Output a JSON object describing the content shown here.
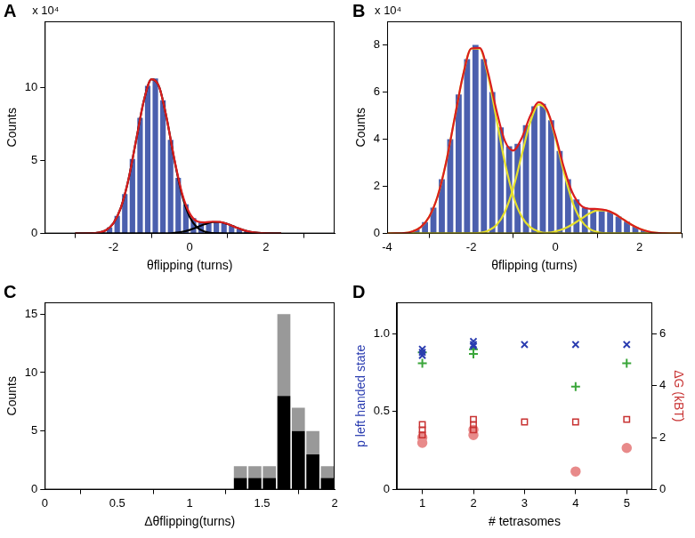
{
  "chart_data": [
    {
      "panel": "A",
      "type": "histogram",
      "xlabel": "θflipping (turns)",
      "ylabel": "Counts",
      "y_multiplier": "x 10⁴",
      "bins": [
        -3,
        -2.8,
        -2.6,
        -2.4,
        -2.2,
        -2,
        -1.8,
        -1.6,
        -1.4,
        -1.2,
        -1,
        -0.8,
        -0.6,
        -0.4,
        -0.2,
        0,
        0.2,
        0.4,
        0.6,
        0.8,
        1,
        1.2,
        1.4,
        1.6,
        1.8,
        2,
        2.2,
        2.4
      ],
      "counts": [
        0,
        0.01,
        0.03,
        0.13,
        0.42,
        1.2,
        2.7,
        5.1,
        7.9,
        10.1,
        10.6,
        9.1,
        6.4,
        3.8,
        2,
        1.05,
        0.78,
        0.8,
        0.82,
        0.72,
        0.55,
        0.33,
        0.17,
        0.07,
        0.02,
        0.01,
        0
      ],
      "color": "#4b5fae",
      "x": [
        -3,
        -2.8,
        -2.6,
        -2.4,
        -2.2,
        -2,
        -1.8,
        -1.6,
        -1.4,
        -1.2,
        -1,
        -0.8,
        -0.6,
        -0.4,
        -0.2,
        0,
        0.2,
        0.4,
        0.6,
        0.8,
        1,
        1.2,
        1.4,
        1.6,
        1.8,
        2,
        2.2,
        2.4
      ],
      "series": [
        {
          "type": "line",
          "color": "#000000",
          "values": [
            0,
            0,
            0.01,
            0.06,
            0.22,
            0.7,
            1.79,
            3.74,
            6.43,
            9.09,
            10.54,
            10.03,
            7.84,
            5.02,
            2.64,
            1.14,
            0.4,
            0.12,
            0.03,
            0.01,
            0,
            0,
            0,
            0,
            0,
            0,
            0,
            0
          ]
        },
        {
          "type": "line",
          "color": "#000000",
          "values": [
            0,
            0,
            0,
            0,
            0,
            0,
            0,
            0,
            0,
            0,
            0,
            0,
            0,
            0.04,
            0.11,
            0.24,
            0.43,
            0.64,
            0.78,
            0.78,
            0.64,
            0.43,
            0.24,
            0.11,
            0.04,
            0.01,
            0,
            0
          ]
        },
        {
          "type": "line",
          "color": "#d91e1e",
          "values": [
            0,
            0,
            0.01,
            0.06,
            0.22,
            0.7,
            1.79,
            3.74,
            6.43,
            9.09,
            10.54,
            10.03,
            7.84,
            5.06,
            2.75,
            1.38,
            0.83,
            0.76,
            0.81,
            0.79,
            0.64,
            0.43,
            0.24,
            0.11,
            0.04,
            0.01,
            0,
            0
          ]
        }
      ],
      "xlim": [
        -3.8,
        3.8
      ],
      "xticks": [
        -2,
        0,
        2
      ],
      "ylim": [
        0,
        14.5
      ],
      "yticks": [
        0,
        5,
        10
      ],
      "grid": false
    },
    {
      "panel": "B",
      "type": "histogram",
      "xlabel": "θflipping (turns)",
      "ylabel": "Counts",
      "y_multiplier": "x 10⁴",
      "bins": [
        -4,
        -3.8,
        -3.6,
        -3.4,
        -3.2,
        -3,
        -2.8,
        -2.6,
        -2.4,
        -2.2,
        -2,
        -1.8,
        -1.6,
        -1.4,
        -1.2,
        -1,
        -0.8,
        -0.6,
        -0.4,
        -0.2,
        0,
        0.2,
        0.4,
        0.6,
        0.8,
        1,
        1.2,
        1.4,
        1.6,
        1.8,
        2,
        2.2,
        2.4,
        2.6,
        2.8,
        3
      ],
      "counts": [
        0,
        0.01,
        0.05,
        0.17,
        0.48,
        1.1,
        2.3,
        4,
        5.9,
        7.4,
        8,
        7.4,
        6,
        4.5,
        3.7,
        3.8,
        4.6,
        5.4,
        5.5,
        4.8,
        3.5,
        2.3,
        1.45,
        1.1,
        1.05,
        1.02,
        0.92,
        0.72,
        0.5,
        0.29,
        0.14,
        0.06,
        0.02,
        0.01,
        0
      ],
      "color": "#4b5fae",
      "x": [
        -4,
        -3.8,
        -3.6,
        -3.4,
        -3.2,
        -3,
        -2.8,
        -2.6,
        -2.4,
        -2.2,
        -2,
        -1.8,
        -1.6,
        -1.4,
        -1.2,
        -1,
        -0.8,
        -0.6,
        -0.4,
        -0.2,
        0,
        0.2,
        0.4,
        0.6,
        0.8,
        1,
        1.2,
        1.4,
        1.6,
        1.8,
        2,
        2.2,
        2.4,
        2.6,
        2.8,
        3
      ],
      "series": [
        {
          "type": "line",
          "color": "#e6e02a",
          "values": [
            0,
            0.01,
            0.02,
            0.09,
            0.27,
            0.71,
            1.58,
            3,
            4.85,
            6.68,
            7.84,
            7.84,
            6.68,
            4.85,
            3,
            1.58,
            0.71,
            0.27,
            0.09,
            0.02,
            0.01,
            0,
            0,
            0,
            0,
            0,
            0,
            0,
            0,
            0,
            0,
            0,
            0,
            0,
            0,
            0
          ]
        },
        {
          "type": "line",
          "color": "#e6e02a",
          "values": [
            0,
            0,
            0,
            0,
            0,
            0,
            0,
            0,
            0,
            0,
            0.01,
            0.03,
            0.12,
            0.36,
            0.92,
            1.94,
            3.34,
            4.71,
            5.47,
            5.2,
            4.06,
            2.61,
            1.37,
            0.59,
            0.21,
            0.06,
            0.01,
            0,
            0,
            0,
            0,
            0,
            0,
            0,
            0,
            0
          ]
        },
        {
          "type": "line",
          "color": "#e6e02a",
          "values": [
            0,
            0,
            0,
            0,
            0,
            0,
            0,
            0,
            0,
            0,
            0,
            0,
            0,
            0,
            0,
            0,
            0,
            0,
            0.01,
            0.03,
            0.09,
            0.2,
            0.38,
            0.61,
            0.84,
            0.98,
            0.98,
            0.84,
            0.61,
            0.38,
            0.2,
            0.09,
            0.03,
            0.01,
            0,
            0
          ]
        },
        {
          "type": "line",
          "color": "#d91e1e",
          "values": [
            0,
            0.01,
            0.02,
            0.09,
            0.27,
            0.71,
            1.58,
            3,
            4.85,
            6.68,
            7.85,
            7.87,
            6.8,
            5.21,
            3.92,
            3.52,
            4.05,
            4.98,
            5.57,
            5.25,
            4.16,
            2.81,
            1.75,
            1.2,
            1.05,
            1.04,
            0.99,
            0.84,
            0.61,
            0.38,
            0.2,
            0.09,
            0.03,
            0.01,
            0,
            0
          ]
        }
      ],
      "xlim": [
        -4,
        3
      ],
      "xticks": [
        -4,
        -2,
        0,
        2
      ],
      "ylim": [
        0,
        9
      ],
      "yticks": [
        0,
        2,
        4,
        6,
        8
      ],
      "grid": false
    },
    {
      "panel": "C",
      "type": "histogram",
      "stacked": true,
      "xlabel": "Δθflipping(turns)",
      "ylabel": "Counts",
      "bins": [
        1.3,
        1.4,
        1.5,
        1.6,
        1.7,
        1.8,
        1.9,
        2
      ],
      "series": [
        {
          "color": "#000000",
          "counts": [
            1,
            1,
            1,
            8,
            5,
            3,
            1
          ]
        },
        {
          "color": "#999999",
          "counts": [
            1,
            1,
            1,
            7,
            2,
            2,
            1
          ]
        }
      ],
      "xlim": [
        0,
        2
      ],
      "xticks": [
        0,
        0.5,
        1,
        1.5,
        2
      ],
      "ylim": [
        0,
        16
      ],
      "yticks": [
        0,
        5,
        10,
        15
      ],
      "grid": false
    },
    {
      "panel": "D",
      "type": "scatter",
      "xlabel": "# tetrasomes",
      "ylabel": "p left handed state",
      "y2label": "ΔG (kBT)",
      "series": [
        {
          "color": "#2a3cb0",
          "marker": "x",
          "x": [
            1,
            1,
            1,
            2,
            2,
            2,
            3,
            4,
            5
          ],
          "values": [
            0.86,
            0.88,
            0.9,
            0.92,
            0.93,
            0.95,
            0.93,
            0.93,
            0.93
          ]
        },
        {
          "color": "#3aa63a",
          "marker": "plus",
          "x": [
            1,
            1,
            2,
            2,
            4,
            5
          ],
          "values": [
            0.81,
            0.88,
            0.87,
            0.9,
            0.66,
            0.81
          ]
        },
        {
          "axis": "y2",
          "color": "#c83232",
          "marker": "square",
          "x": [
            1,
            1,
            1,
            2,
            2,
            2,
            3,
            4,
            5
          ],
          "values": [
            2.1,
            2.3,
            2.5,
            2.3,
            2.5,
            2.7,
            2.6,
            2.6,
            2.7
          ]
        },
        {
          "axis": "y2",
          "color": "#e88a8a",
          "marker": "circle",
          "x": [
            1,
            1,
            2,
            2,
            4,
            5
          ],
          "values": [
            1.8,
            2,
            2.1,
            2.3,
            0.7,
            1.6
          ]
        }
      ],
      "xlim": [
        0.5,
        5.5
      ],
      "xticks": [
        1,
        2,
        3,
        4,
        5
      ],
      "ylim": [
        0,
        1.2
      ],
      "yticks": [
        0,
        0.5,
        {
          "value": 1,
          "label": "1.0"
        }
      ],
      "y2lim": [
        0,
        7.2
      ],
      "y2ticks": [
        0,
        2,
        4,
        6
      ],
      "grid": false
    }
  ]
}
